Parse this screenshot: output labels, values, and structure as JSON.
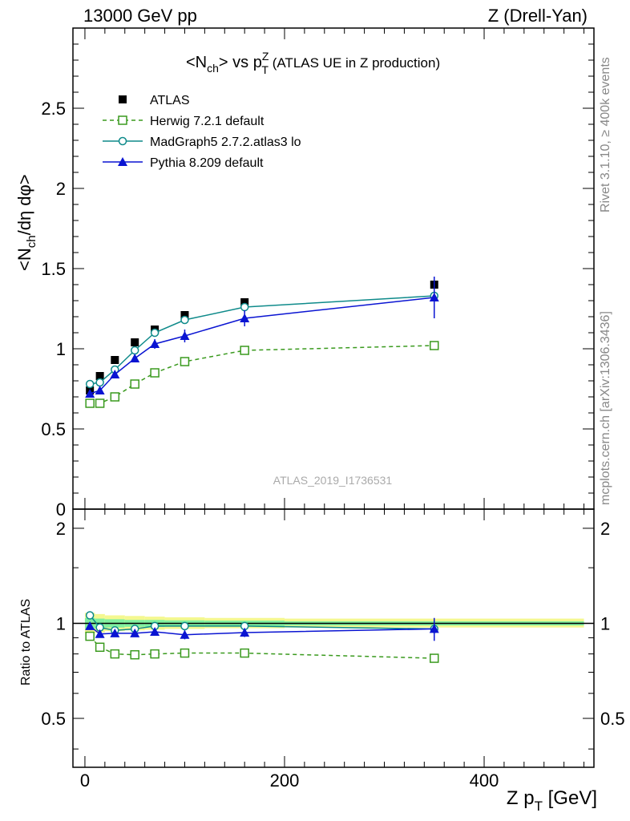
{
  "header": {
    "left": "13000 GeV pp",
    "right": "Z (Drell-Yan)",
    "title_main": "<N",
    "title_sub": "ch",
    "title_mid": "> vs p",
    "title_sup": "Z",
    "title_sub2": "T",
    "title_tail": " (ATLAS UE in Z production)"
  },
  "side_labels": {
    "rivet": "Rivet 3.1.10, ≥ 400k events",
    "mcplots": "mcplots.cern.ch [arXiv:1306.3436]"
  },
  "watermark": "ATLAS_2019_I1736531",
  "axes": {
    "main_ylabel": "<N_ch/dη dφ>",
    "ratio_ylabel": "Ratio to ATLAS",
    "xlabel_main": "Z p",
    "xlabel_sub": "T",
    "xlabel_tail": " [GeV]"
  },
  "colors": {
    "atlas": "#000000",
    "herwig": "#3a9a1e",
    "madgraph": "#0e8a8a",
    "pythia": "#0a14d2",
    "band_inner": "#80f0a0",
    "band_outer": "#f4f890"
  },
  "chart_data": [
    {
      "type": "scatter",
      "panel": "main",
      "xlim": [
        -12,
        510
      ],
      "ylim": [
        0,
        3.0
      ],
      "yticks": [
        0,
        0.5,
        1,
        1.5,
        2,
        2.5
      ],
      "ytick_labels": [
        "0",
        "0.5",
        "1",
        "1.5",
        "2",
        "2.5"
      ],
      "grid": false,
      "legend_position": "top-left",
      "series": [
        {
          "name": "ATLAS",
          "marker": "square-filled",
          "line": "none",
          "x": [
            5,
            15,
            30,
            50,
            70,
            100,
            160,
            350
          ],
          "y": [
            0.74,
            0.83,
            0.93,
            1.04,
            1.12,
            1.21,
            1.29,
            1.4
          ],
          "yerr": [
            0.01,
            0.01,
            0.01,
            0.01,
            0.01,
            0.01,
            0.01,
            0.015
          ]
        },
        {
          "name": "Herwig 7.2.1 default",
          "marker": "square-open",
          "line": "dashed",
          "x": [
            5,
            15,
            30,
            50,
            70,
            100,
            160,
            350
          ],
          "y": [
            0.66,
            0.66,
            0.7,
            0.78,
            0.85,
            0.92,
            0.99,
            1.02
          ],
          "yerr": [
            0.005,
            0.005,
            0.005,
            0.005,
            0.005,
            0.01,
            0.01,
            0.02
          ]
        },
        {
          "name": "MadGraph5 2.7.2.atlas3 lo",
          "marker": "circle-open",
          "line": "solid",
          "x": [
            5,
            15,
            30,
            50,
            70,
            100,
            160,
            350
          ],
          "y": [
            0.78,
            0.79,
            0.87,
            0.99,
            1.1,
            1.18,
            1.26,
            1.33
          ],
          "yerr": [
            0.005,
            0.005,
            0.005,
            0.005,
            0.005,
            0.01,
            0.01,
            0.02
          ]
        },
        {
          "name": "Pythia 8.209 default",
          "marker": "triangle-filled",
          "line": "solid",
          "x": [
            5,
            15,
            30,
            50,
            70,
            100,
            160,
            350
          ],
          "y": [
            0.72,
            0.74,
            0.84,
            0.94,
            1.03,
            1.08,
            1.19,
            1.32
          ],
          "yerr": [
            0.01,
            0.01,
            0.02,
            0.02,
            0.03,
            0.04,
            0.05,
            0.13
          ]
        }
      ]
    },
    {
      "type": "scatter",
      "panel": "ratio",
      "ylabel": "Ratio to ATLAS",
      "xlim": [
        -12,
        510
      ],
      "ylim": [
        0.35,
        2.3
      ],
      "log_y": true,
      "yticks": [
        0.5,
        1,
        2
      ],
      "ytick_labels": [
        "0.5",
        "1",
        "2"
      ],
      "xticks": [
        0,
        200,
        400
      ],
      "xtick_labels": [
        "0",
        "200",
        "400"
      ],
      "xlabel": "Z p_T [GeV]",
      "reference": 1.0,
      "band": {
        "x_edges": [
          0,
          10,
          20,
          40,
          60,
          80,
          120,
          200,
          500
        ],
        "inner_lo": [
          0.96,
          0.965,
          0.97,
          0.975,
          0.975,
          0.978,
          0.98,
          0.985
        ],
        "inner_hi": [
          1.04,
          1.035,
          1.03,
          1.025,
          1.025,
          1.022,
          1.02,
          1.015
        ],
        "outer_lo": [
          0.93,
          0.935,
          0.945,
          0.95,
          0.955,
          0.96,
          0.965,
          0.97
        ],
        "outer_hi": [
          1.08,
          1.07,
          1.06,
          1.055,
          1.05,
          1.045,
          1.04,
          1.035
        ]
      },
      "series": [
        {
          "name": "Herwig 7.2.1 default",
          "x": [
            5,
            15,
            30,
            50,
            70,
            100,
            160,
            350
          ],
          "y": [
            0.91,
            0.84,
            0.8,
            0.795,
            0.8,
            0.805,
            0.805,
            0.775
          ],
          "yerr": [
            0.01,
            0.01,
            0.01,
            0.01,
            0.01,
            0.01,
            0.01,
            0.015
          ]
        },
        {
          "name": "MadGraph5 2.7.2.atlas3 lo",
          "x": [
            5,
            15,
            30,
            50,
            70,
            100,
            160,
            350
          ],
          "y": [
            1.06,
            0.97,
            0.95,
            0.96,
            0.98,
            0.98,
            0.98,
            0.96
          ],
          "yerr": [
            0.005,
            0.005,
            0.005,
            0.005,
            0.005,
            0.01,
            0.01,
            0.02
          ]
        },
        {
          "name": "Pythia 8.209 default",
          "x": [
            5,
            15,
            30,
            50,
            70,
            100,
            160,
            350
          ],
          "y": [
            0.98,
            0.925,
            0.93,
            0.93,
            0.94,
            0.92,
            0.935,
            0.96
          ],
          "yerr": [
            0.01,
            0.01,
            0.015,
            0.015,
            0.02,
            0.03,
            0.03,
            0.08
          ]
        }
      ]
    }
  ]
}
